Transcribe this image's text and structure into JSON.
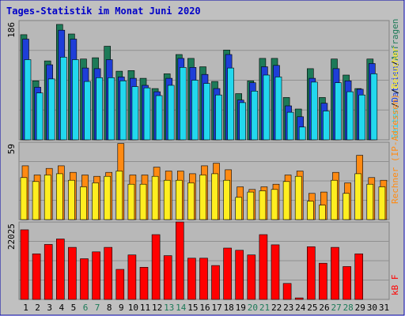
{
  "title": "Tages-Statistik im Monat Juni 2020",
  "colors": {
    "frame_bg": "#c0c0c0",
    "outer_border": "#0000a8",
    "plot_bg": "#b8b8b8",
    "grid": "#909090",
    "title": "#0000c8",
    "hits": "#1d7a58",
    "files": "#1e3ed8",
    "pages": "#22d8ee",
    "visits": "#ff8a12",
    "sites": "#ffee20",
    "kbf": "#ff0000",
    "weekday_label": "#000000",
    "weekend_label": "#1d7a58"
  },
  "chart_data": [
    {
      "type": "bar",
      "panel": "hits",
      "ylabel_top": "186",
      "ymax": 186,
      "x": [
        1,
        2,
        3,
        4,
        5,
        6,
        7,
        8,
        9,
        10,
        11,
        12,
        13,
        14,
        15,
        16,
        17,
        18,
        19,
        20,
        21,
        22,
        23,
        24,
        25,
        26,
        27,
        28,
        29,
        30,
        31
      ],
      "series": [
        {
          "name": "Anfragen",
          "values": [
            164,
            92,
            123,
            180,
            165,
            126,
            128,
            146,
            107,
            108,
            96,
            80,
            103,
            133,
            127,
            114,
            91,
            140,
            72,
            92,
            127,
            127,
            66,
            48,
            111,
            66,
            126,
            101,
            80,
            126,
            0
          ]
        },
        {
          "name": "Dateien",
          "values": [
            157,
            82,
            117,
            171,
            157,
            112,
            111,
            125,
            98,
            96,
            85,
            75,
            96,
            127,
            113,
            102,
            80,
            133,
            62,
            89,
            114,
            116,
            53,
            36,
            96,
            57,
            111,
            92,
            79,
            119,
            0
          ]
        },
        {
          "name": "Seiten",
          "values": [
            125,
            73,
            95,
            129,
            125,
            91,
            97,
            97,
            92,
            83,
            81,
            69,
            85,
            113,
            93,
            88,
            70,
            112,
            58,
            76,
            101,
            98,
            43,
            20,
            90,
            45,
            89,
            75,
            70,
            103,
            0
          ]
        }
      ],
      "series_label_order": [
        "Seiten",
        "Dateien",
        "Anfragen"
      ]
    },
    {
      "type": "bar",
      "panel": "visits",
      "ylabel_top": "59",
      "ymax": 59,
      "x": [
        1,
        2,
        3,
        4,
        5,
        6,
        7,
        8,
        9,
        10,
        11,
        12,
        13,
        14,
        15,
        16,
        17,
        18,
        19,
        20,
        21,
        22,
        23,
        24,
        25,
        26,
        27,
        28,
        29,
        30,
        31
      ],
      "series": [
        {
          "name": "Besucher",
          "values": [
            41,
            34,
            39,
            41,
            36,
            34,
            33,
            36,
            58,
            34,
            34,
            40,
            37,
            37,
            35,
            41,
            43,
            38,
            25,
            23,
            25,
            27,
            34,
            37,
            20,
            21,
            36,
            28,
            49,
            32,
            30
          ]
        },
        {
          "name": "Rechner",
          "values": [
            32,
            29,
            34,
            35,
            30,
            25,
            28,
            33,
            37,
            27,
            27,
            33,
            30,
            30,
            28,
            34,
            35,
            30,
            17,
            21,
            22,
            23,
            29,
            33,
            14,
            11,
            30,
            20,
            35,
            27,
            25
          ]
        }
      ],
      "series_label_order": [
        "Rechner (IP-Adressen)",
        "Besucher"
      ]
    },
    {
      "type": "bar",
      "panel": "kbf",
      "ylabel_top": "22025",
      "ymax": 22025,
      "x": [
        1,
        2,
        3,
        4,
        5,
        6,
        7,
        8,
        9,
        10,
        11,
        12,
        13,
        14,
        15,
        16,
        17,
        18,
        19,
        20,
        21,
        22,
        23,
        24,
        25,
        26,
        27,
        28,
        29,
        30,
        31
      ],
      "series": [
        {
          "name": "kB F",
          "values": [
            19800,
            12970,
            15650,
            17200,
            14800,
            11570,
            13520,
            14810,
            8550,
            12650,
            9140,
            18430,
            12460,
            22025,
            11740,
            11740,
            9640,
            14600,
            13990,
            12650,
            18430,
            15540,
            4550,
            420,
            14990,
            10290,
            14810,
            9340,
            12970,
            0,
            0
          ]
        }
      ],
      "series_label_order": [
        "kB F"
      ]
    }
  ]
}
